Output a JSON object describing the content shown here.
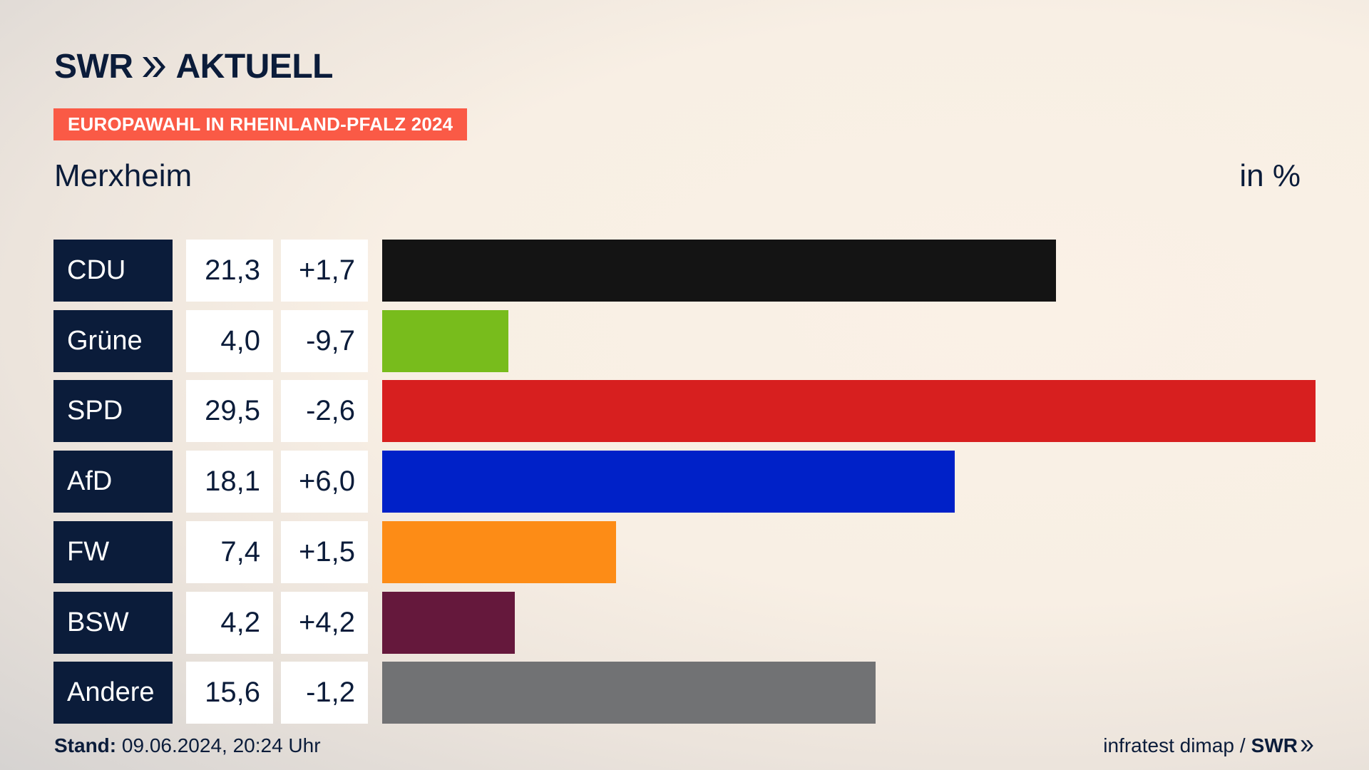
{
  "header": {
    "brand": "SWR",
    "brand_suffix": "AKTUELL",
    "tag": "EUROPAWAHL IN RHEINLAND-PFALZ 2024",
    "location": "Merxheim",
    "unit": "in %"
  },
  "footer": {
    "stand_label": "Stand:",
    "stand_value": "09.06.2024, 20:24 Uhr",
    "source": "infratest dimap",
    "separator": "/",
    "source_brand": "SWR"
  },
  "colors": {
    "navy": "#0b1c3a",
    "tag": "#fa5a46"
  },
  "chart_data": {
    "type": "bar",
    "orientation": "horizontal",
    "title": "Merxheim",
    "unit": "in %",
    "max_value": 29.5,
    "categories": [
      "CDU",
      "Grüne",
      "SPD",
      "AfD",
      "FW",
      "BSW",
      "Andere"
    ],
    "values": [
      21.3,
      4.0,
      29.5,
      18.1,
      7.4,
      4.2,
      15.6
    ],
    "value_labels": [
      "21,3",
      "4,0",
      "29,5",
      "18,1",
      "7,4",
      "4,2",
      "15,6"
    ],
    "diff_labels": [
      "+1,7",
      "-9,7",
      "-2,6",
      "+6,0",
      "+1,5",
      "+4,2",
      "-1,2"
    ],
    "colors": [
      "#141414",
      "#78bc1c",
      "#d71f1f",
      "#0021c8",
      "#fd8c16",
      "#65183c",
      "#717274"
    ]
  }
}
